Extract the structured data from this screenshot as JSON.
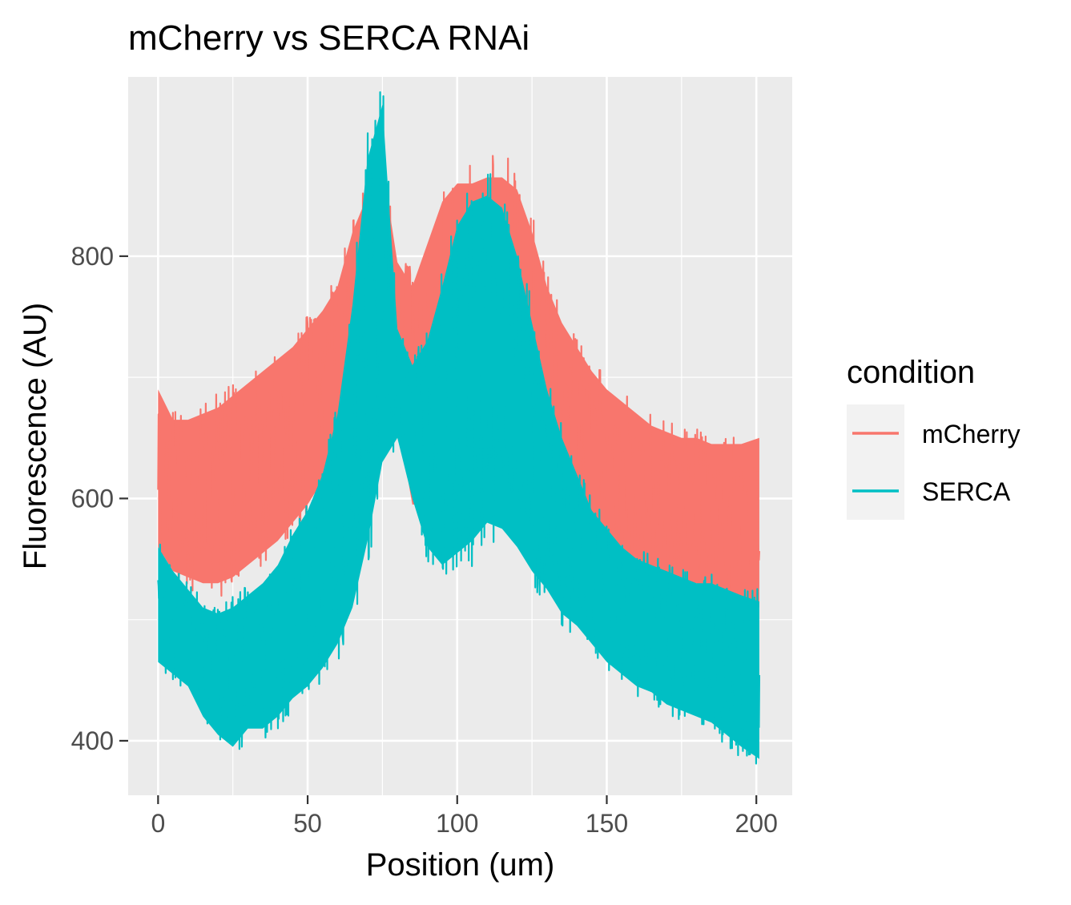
{
  "chart_data": {
    "type": "line",
    "title": "mCherry vs SERCA RNAi",
    "xlabel": "Position (um)",
    "ylabel": "Fluorescence (AU)",
    "xlim": [
      -10,
      212
    ],
    "ylim": [
      355,
      948
    ],
    "x_ticks": [
      0,
      50,
      100,
      150,
      200
    ],
    "y_ticks": [
      400,
      600,
      800
    ],
    "x_tick_labels": [
      "0",
      "50",
      "100",
      "150",
      "200"
    ],
    "y_tick_labels": [
      "400",
      "600",
      "800"
    ],
    "grid": true,
    "legend": {
      "title": "condition",
      "placement": "right"
    },
    "series": [
      {
        "name": "mCherry",
        "color": "#F8766D",
        "x": [
          0,
          5,
          10,
          15,
          20,
          25,
          30,
          35,
          40,
          45,
          50,
          55,
          60,
          65,
          70,
          75,
          80,
          85,
          90,
          95,
          100,
          105,
          110,
          115,
          120,
          125,
          130,
          135,
          140,
          145,
          150,
          155,
          160,
          165,
          170,
          175,
          180,
          185,
          190,
          195,
          201
        ],
        "y_lower": [
          560,
          540,
          535,
          530,
          530,
          535,
          545,
          555,
          565,
          580,
          595,
          615,
          630,
          655,
          690,
          700,
          665,
          595,
          595,
          600,
          610,
          615,
          610,
          610,
          615,
          610,
          590,
          575,
          565,
          555,
          545,
          545,
          540,
          540,
          535,
          530,
          530,
          525,
          520,
          515,
          510
        ],
        "y_upper": [
          690,
          665,
          665,
          670,
          675,
          685,
          695,
          705,
          715,
          725,
          740,
          755,
          775,
          820,
          850,
          875,
          795,
          775,
          810,
          845,
          860,
          860,
          865,
          865,
          855,
          820,
          775,
          745,
          725,
          705,
          690,
          680,
          670,
          660,
          655,
          650,
          650,
          645,
          645,
          645,
          650
        ]
      },
      {
        "name": "SERCA",
        "color": "#00BFC4",
        "x": [
          0,
          5,
          10,
          15,
          20,
          25,
          30,
          35,
          40,
          45,
          50,
          55,
          60,
          65,
          70,
          75,
          80,
          85,
          90,
          95,
          100,
          105,
          110,
          115,
          120,
          125,
          130,
          135,
          140,
          145,
          150,
          155,
          160,
          165,
          170,
          175,
          180,
          185,
          190,
          195,
          201
        ],
        "y_lower": [
          465,
          455,
          445,
          420,
          405,
          395,
          410,
          410,
          420,
          435,
          445,
          460,
          480,
          510,
          565,
          630,
          650,
          600,
          560,
          545,
          555,
          565,
          580,
          575,
          560,
          540,
          525,
          505,
          495,
          480,
          465,
          455,
          445,
          440,
          430,
          425,
          420,
          415,
          405,
          395,
          385
        ],
        "y_upper": [
          560,
          540,
          525,
          510,
          505,
          510,
          520,
          530,
          545,
          570,
          590,
          620,
          670,
          760,
          880,
          925,
          740,
          710,
          730,
          775,
          825,
          845,
          850,
          840,
          800,
          745,
          690,
          650,
          620,
          590,
          575,
          560,
          550,
          545,
          540,
          535,
          530,
          530,
          525,
          520,
          515
        ]
      }
    ]
  }
}
